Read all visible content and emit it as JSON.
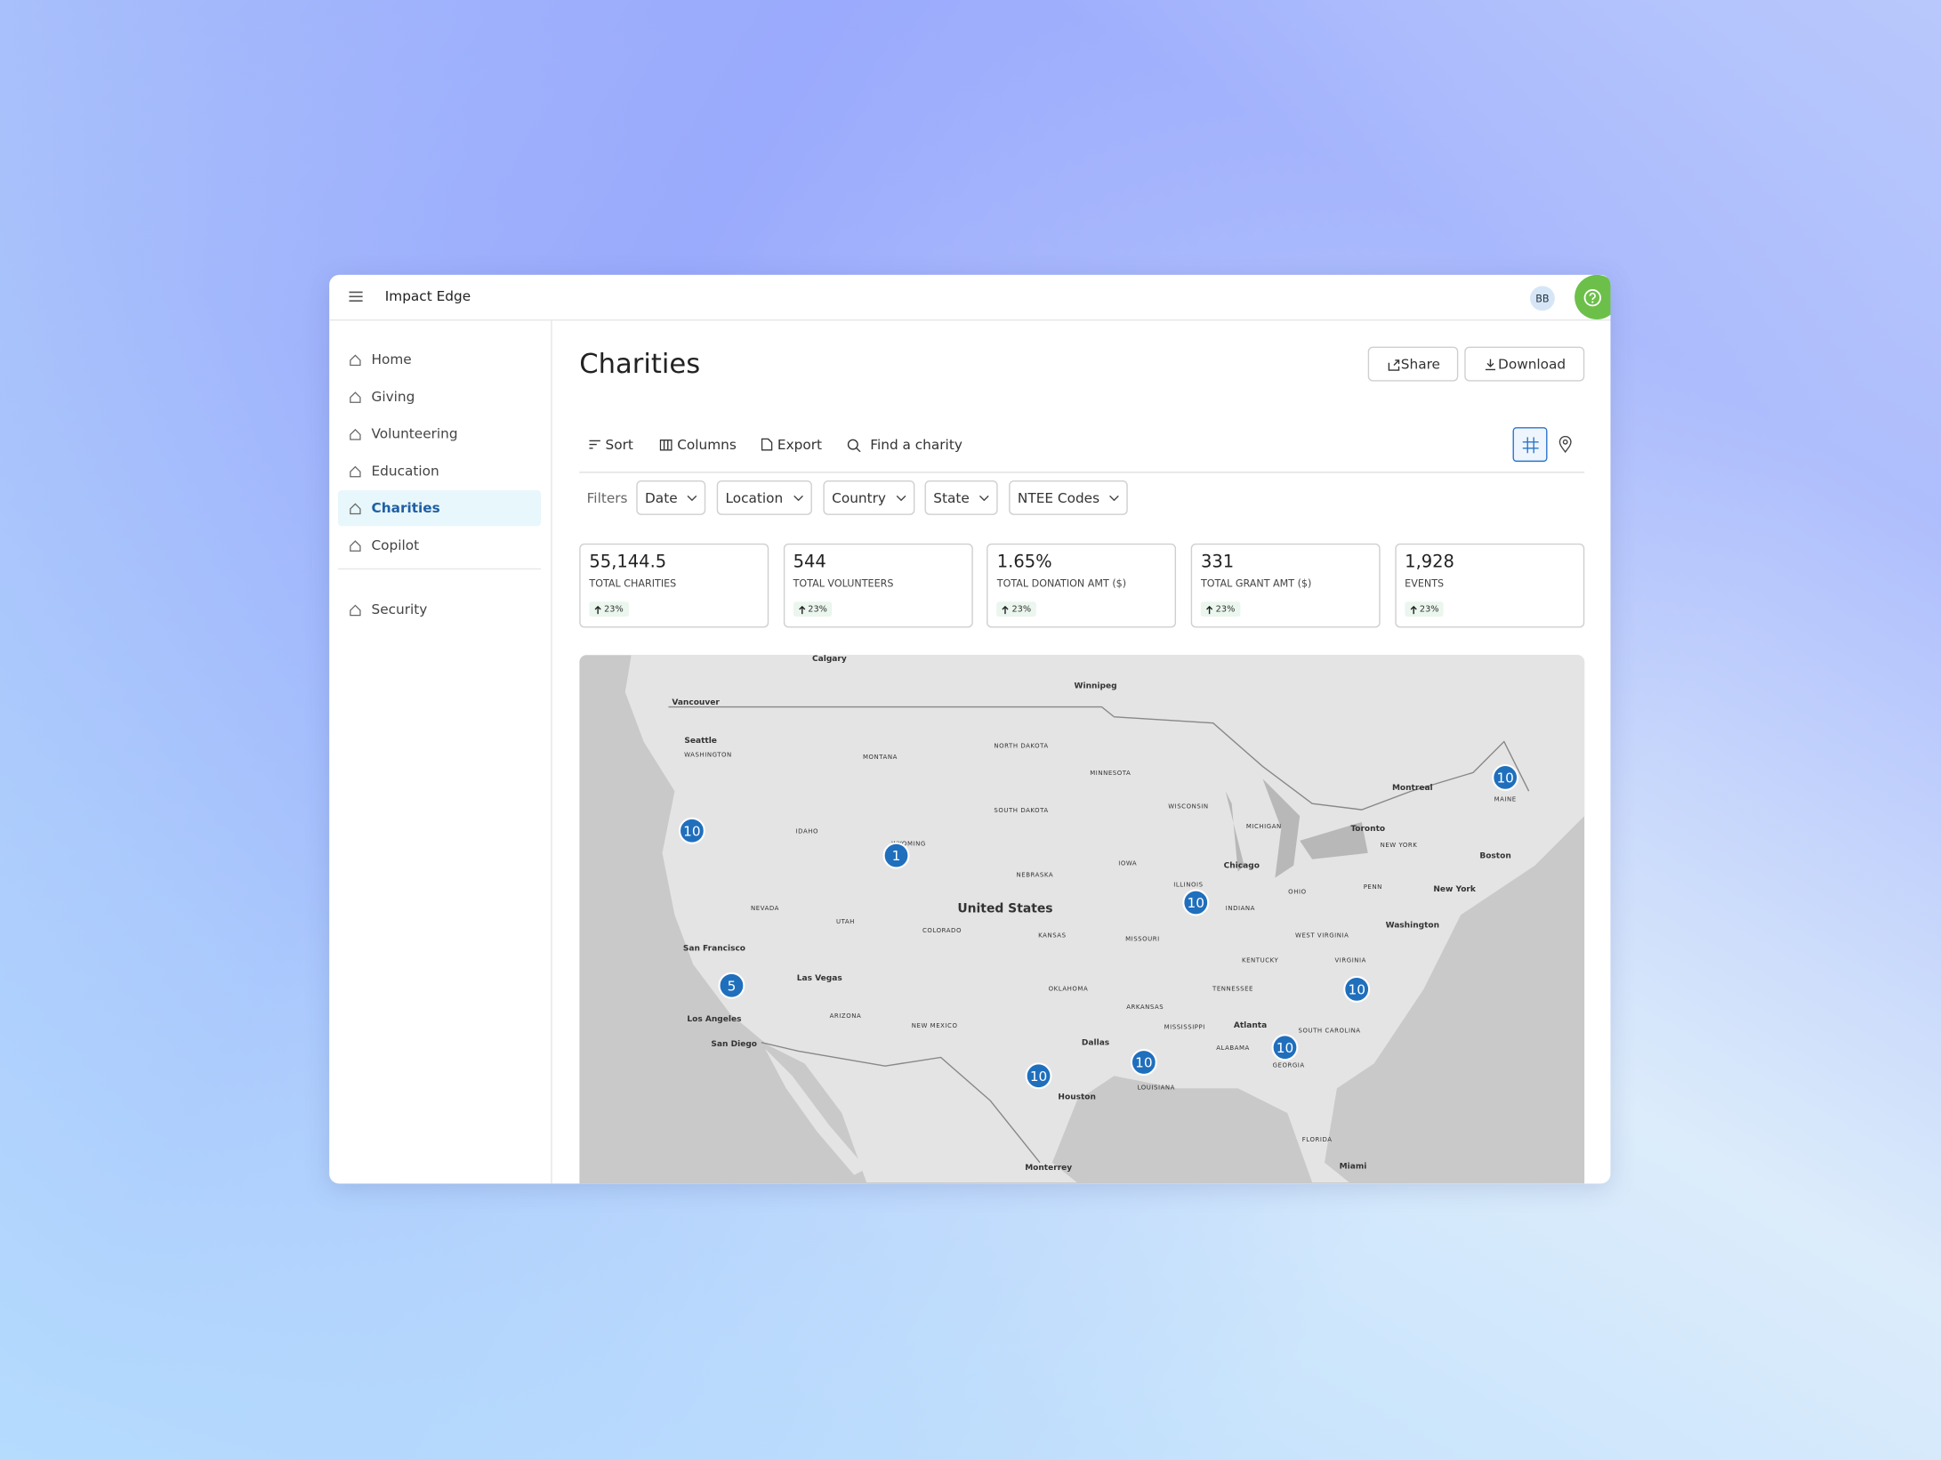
{
  "header": {
    "app_name": "Impact Edge",
    "avatar": "BB"
  },
  "nav": {
    "items": [
      "Home",
      "Giving",
      "Volunteering",
      "Education",
      "Charities",
      "Copilot"
    ],
    "bottom": [
      "Security"
    ],
    "active": "Charities"
  },
  "page": {
    "title": "Charities",
    "actions": [
      "Share",
      "Download"
    ],
    "toolbar": [
      "Sort",
      "Columns",
      "Export",
      "Find a charity"
    ],
    "filters_label": "Filters",
    "filters": [
      "Date",
      "Location",
      "Country",
      "State",
      "NTEE Codes"
    ],
    "stats": [
      {
        "value": "55,144.5",
        "label": "TOTAL CHARITIES",
        "change": "23%"
      },
      {
        "value": "544",
        "label": "TOTAL VOLUNTEERS",
        "change": "23%"
      },
      {
        "value": "1.65%",
        "label": "TOTAL DONATION AMT ($)",
        "change": "23%"
      },
      {
        "value": "331",
        "label": "TOTAL GRANT AMT ($)",
        "change": "23%"
      },
      {
        "value": "1,928",
        "label": "EVENTS",
        "change": "23%"
      }
    ]
  },
  "map": {
    "clusters": [
      10,
      1,
      10,
      10,
      5,
      10,
      10,
      10,
      10
    ],
    "labels": [
      "Calgary",
      "Winnipeg",
      "Vancouver",
      "Seattle",
      "WASHINGTON",
      "MONTANA",
      "NORTH DAKOTA",
      "MINNESOTA",
      "SOUTH DAKOTA",
      "WISCONSIN",
      "MICHIGAN",
      "Montreal",
      "Toronto",
      "MAINE",
      "IDAHO",
      "WYOMING",
      "NEBRASKA",
      "IOWA",
      "Chicago",
      "NEW YORK",
      "Boston",
      "NEVADA",
      "UTAH",
      "United States",
      "COLORADO",
      "KANSAS",
      "ILLINOIS",
      "INDIANA",
      "OHIO",
      "PENN",
      "New York",
      "Washington",
      "MISSOURI",
      "WEST VIRGINIA",
      "San Francisco",
      "KENTUCKY",
      "VIRGINIA",
      "Las Vegas",
      "OKLAHOMA",
      "TENNESSEE",
      "ARKANSAS",
      "Los Angeles",
      "ARIZONA",
      "NEW MEXICO",
      "MISSISSIPPI",
      "Atlanta",
      "SOUTH CAROLINA",
      "San Diego",
      "Dallas",
      "ALABAMA",
      "GEORGIA",
      "LOUISIANA",
      "Houston",
      "FLORIDA",
      "Monterrey",
      "Miami"
    ]
  }
}
